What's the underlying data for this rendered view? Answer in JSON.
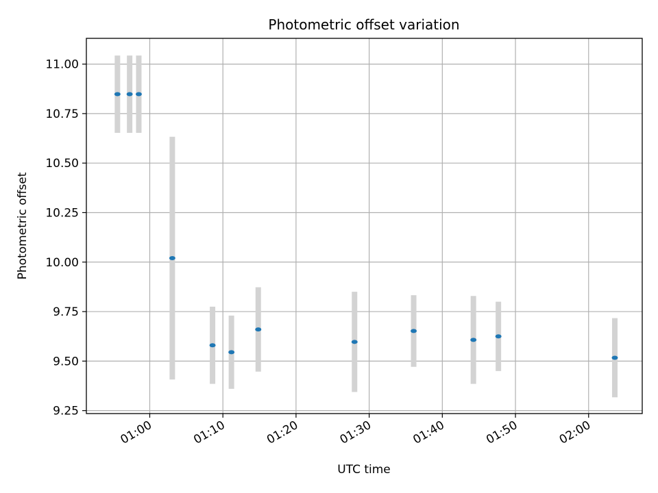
{
  "chart_data": {
    "type": "scatter",
    "title": "Photometric offset variation",
    "xlabel": "UTC time",
    "ylabel": "Photometric offset",
    "x_unit": "UTC time (HH:MM)",
    "xlim": [
      "00:51:20",
      "02:07:20"
    ],
    "ylim": [
      9.235,
      11.13
    ],
    "grid": true,
    "legend": "none",
    "x_ticks": [
      "01:00",
      "01:10",
      "01:20",
      "01:30",
      "01:40",
      "01:50",
      "02:00"
    ],
    "y_ticks": [
      9.25,
      9.5,
      9.75,
      10.0,
      10.25,
      10.5,
      10.75,
      11.0
    ],
    "y_tick_labels": [
      "9.25",
      "9.50",
      "9.75",
      "10.00",
      "10.25",
      "10.50",
      "10.75",
      "11.00"
    ],
    "series": [
      {
        "marker_color": "#1f77b4",
        "errorbar_color": "#d3d3d3",
        "points": [
          {
            "x": "00:55:35",
            "y": 10.848,
            "yerr": 0.195
          },
          {
            "x": "00:57:15",
            "y": 10.848,
            "yerr": 0.195
          },
          {
            "x": "00:58:30",
            "y": 10.848,
            "yerr": 0.195
          },
          {
            "x": "01:03:05",
            "y": 10.02,
            "yerr": 0.613
          },
          {
            "x": "01:08:35",
            "y": 9.58,
            "yerr": 0.195
          },
          {
            "x": "01:11:10",
            "y": 9.545,
            "yerr": 0.185
          },
          {
            "x": "01:14:50",
            "y": 9.66,
            "yerr": 0.213
          },
          {
            "x": "01:28:00",
            "y": 9.597,
            "yerr": 0.253
          },
          {
            "x": "01:36:05",
            "y": 9.652,
            "yerr": 0.181
          },
          {
            "x": "01:44:15",
            "y": 9.607,
            "yerr": 0.222
          },
          {
            "x": "01:47:40",
            "y": 9.625,
            "yerr": 0.175
          },
          {
            "x": "02:03:35",
            "y": 9.517,
            "yerr": 0.2
          }
        ]
      }
    ]
  }
}
